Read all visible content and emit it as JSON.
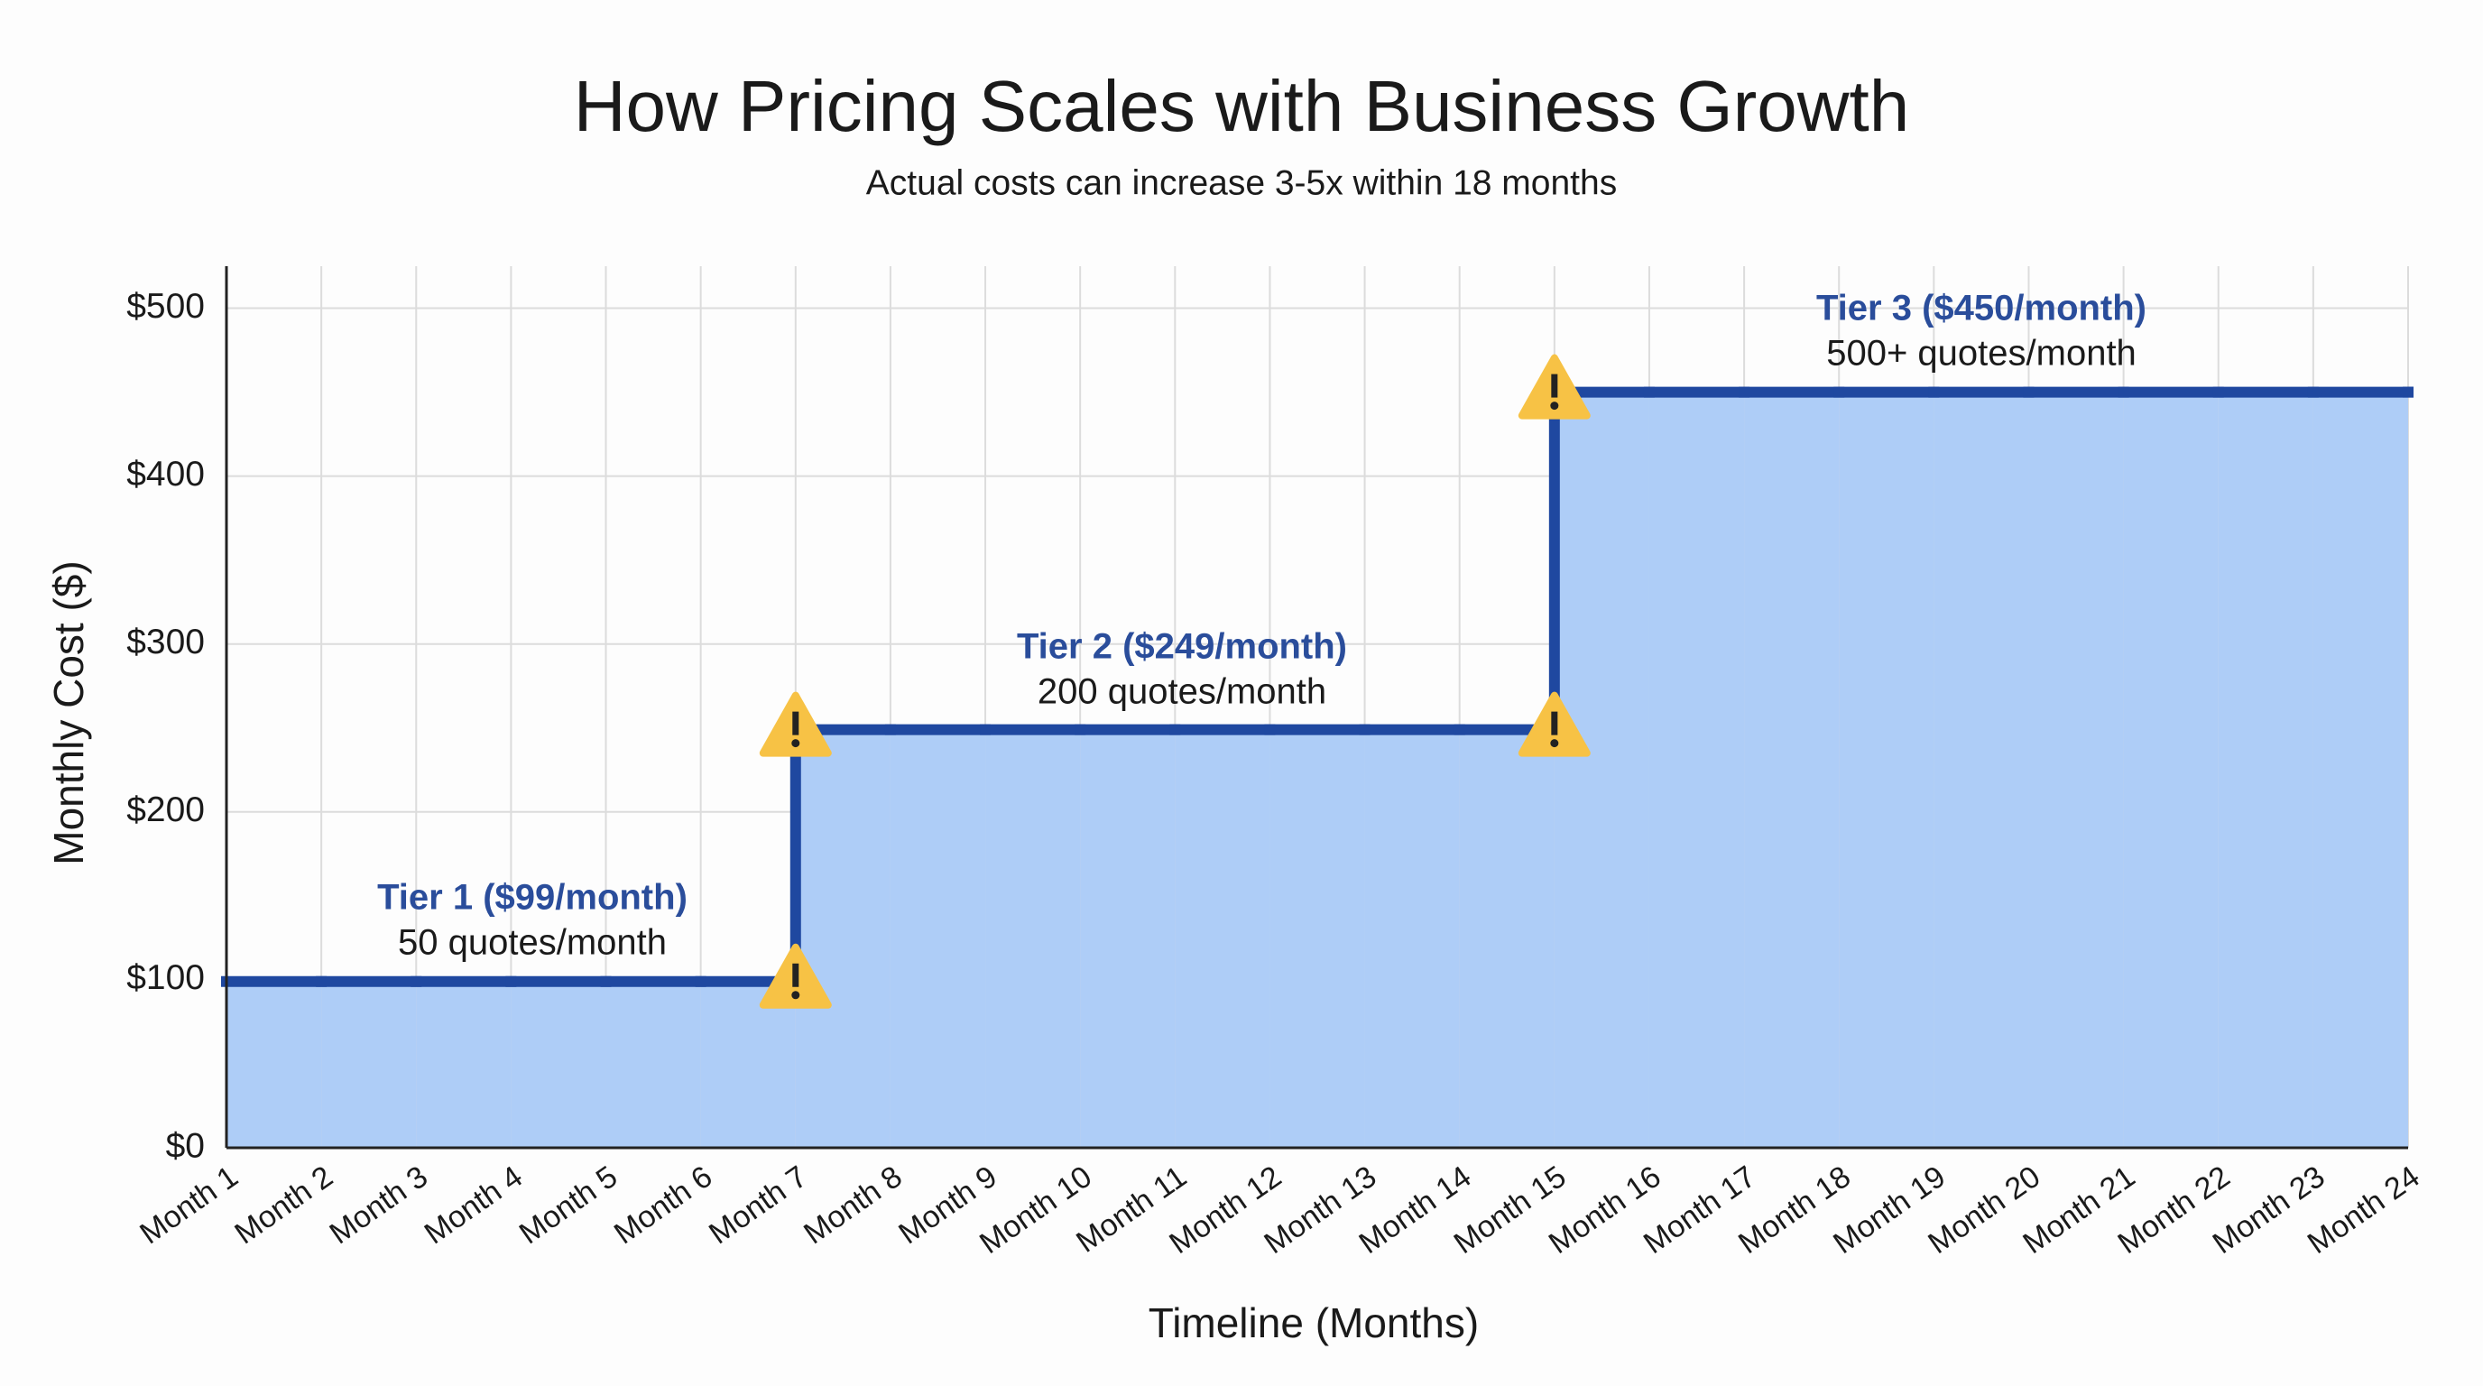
{
  "chart_data": {
    "type": "step",
    "title": "How Pricing Scales with Business Growth",
    "subtitle": "Actual costs can increase 3-5x within 18 months",
    "x_label": "Timeline (Months)",
    "y_label": "Monthly Cost ($)",
    "categories": [
      "Month 1",
      "Month 2",
      "Month 3",
      "Month 4",
      "Month 5",
      "Month 6",
      "Month 7",
      "Month 8",
      "Month 9",
      "Month 10",
      "Month 11",
      "Month 12",
      "Month 13",
      "Month 14",
      "Month 15",
      "Month 16",
      "Month 17",
      "Month 18",
      "Month 19",
      "Month 20",
      "Month 21",
      "Month 22",
      "Month 23",
      "Month 24"
    ],
    "series": [
      {
        "name": "Monthly Cost",
        "color": "#1f48a0",
        "fill": "#aecdf7",
        "values": [
          99,
          99,
          99,
          99,
          99,
          99,
          249,
          249,
          249,
          249,
          249,
          249,
          249,
          249,
          450,
          450,
          450,
          450,
          450,
          450,
          450,
          450,
          450,
          450
        ]
      }
    ],
    "ylim": [
      0,
      525
    ],
    "yticks": [
      {
        "value": 0,
        "label": "$0"
      },
      {
        "value": 100,
        "label": "$100"
      },
      {
        "value": 200,
        "label": "$200"
      },
      {
        "value": 300,
        "label": "$300"
      },
      {
        "value": 400,
        "label": "$400"
      },
      {
        "value": 500,
        "label": "$500"
      }
    ],
    "grid": true,
    "annotations": [
      {
        "title": "Tier 1 ($99/month)",
        "text": "50 quotes/month"
      },
      {
        "title": "Tier 2 ($249/month)",
        "text": "200 quotes/month"
      },
      {
        "title": "Tier 3 ($450/month)",
        "text": "500+ quotes/month"
      }
    ]
  }
}
